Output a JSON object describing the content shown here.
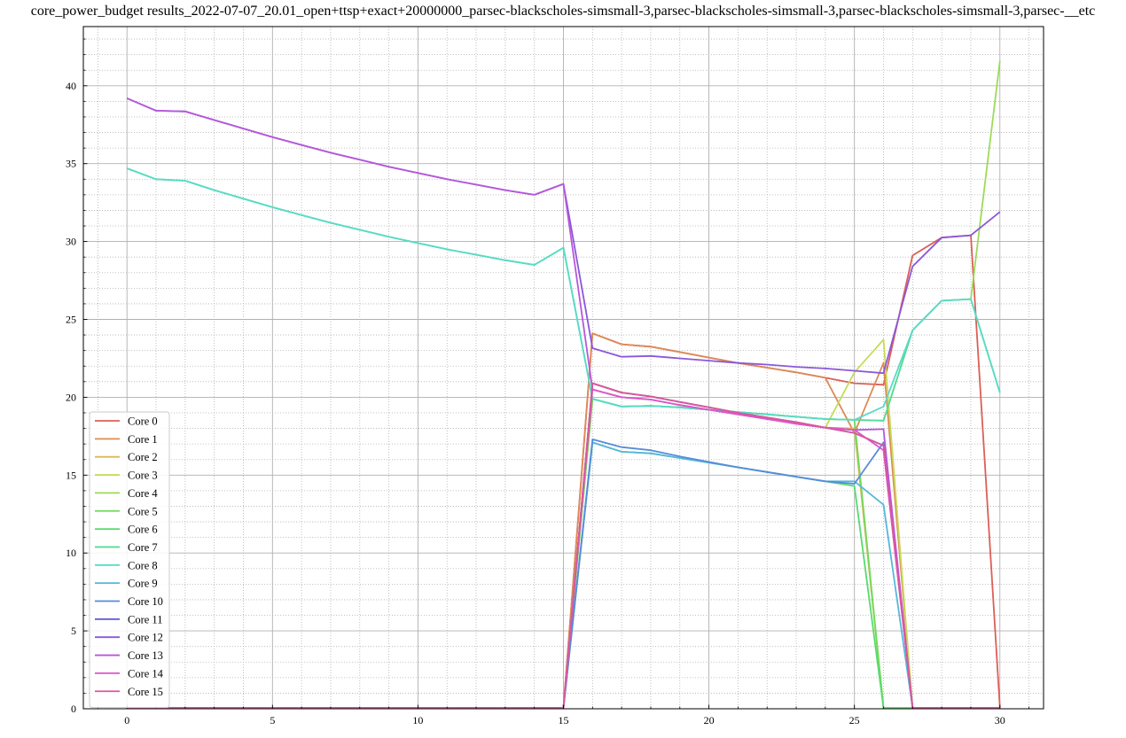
{
  "chart_data": {
    "type": "line",
    "title": "core_power_budget results_2022-07-07_20.01_open+ttsp+exact+20000000_parsec-blackscholes-simsmall-3,parsec-blackscholes-simsmall-3,parsec-blackscholes-simsmall-3,parsec-__etc",
    "xlabel": "",
    "ylabel": "",
    "xlim": [
      -1.5,
      31.5
    ],
    "ylim": [
      0,
      43.8
    ],
    "x_ticks": [
      0,
      5,
      10,
      15,
      20,
      25,
      30
    ],
    "y_ticks": [
      0,
      5,
      10,
      15,
      20,
      25,
      30,
      35,
      40
    ],
    "grid": true,
    "minor_grid": true,
    "legend_position": "lower-left",
    "x": [
      0,
      1,
      2,
      3,
      4,
      5,
      6,
      7,
      8,
      9,
      10,
      11,
      12,
      13,
      14,
      15,
      16,
      17,
      18,
      19,
      20,
      21,
      22,
      23,
      24,
      25,
      26,
      27,
      28,
      29,
      30
    ],
    "series": [
      {
        "name": "Core 0",
        "color": "#db5f57",
        "values": [
          0.05,
          0.05,
          0.05,
          0.05,
          0.05,
          0.05,
          0.05,
          0.05,
          0.05,
          0.05,
          0.05,
          0.05,
          0.05,
          0.05,
          0.05,
          0.05,
          24.1,
          23.4,
          23.25,
          22.9,
          22.55,
          22.2,
          21.9,
          21.6,
          21.25,
          20.9,
          20.8,
          29.1,
          30.25,
          30.4,
          0.05
        ]
      },
      {
        "name": "Core 1",
        "color": "#db8b57",
        "values": [
          0.05,
          0.05,
          0.05,
          0.05,
          0.05,
          0.05,
          0.05,
          0.05,
          0.05,
          0.05,
          0.05,
          0.05,
          0.05,
          0.05,
          0.05,
          0.05,
          24.1,
          23.4,
          23.25,
          22.9,
          22.55,
          22.2,
          21.9,
          21.6,
          21.25,
          17.7,
          22.2,
          0.05,
          0.05,
          0.05,
          0.05
        ]
      },
      {
        "name": "Core 2",
        "color": "#dbb757",
        "values": [
          0.05,
          0.05,
          0.05,
          0.05,
          0.05,
          0.05,
          0.05,
          0.05,
          0.05,
          0.05,
          0.05,
          0.05,
          0.05,
          0.05,
          0.05,
          0.05,
          20.9,
          20.3,
          20.05,
          19.7,
          19.35,
          19.0,
          18.7,
          18.4,
          18.05,
          18.0,
          0.05,
          0.05,
          0.05,
          0.05,
          0.05
        ]
      },
      {
        "name": "Core 3",
        "color": "#c8db57",
        "values": [
          0.05,
          0.05,
          0.05,
          0.05,
          0.05,
          0.05,
          0.05,
          0.05,
          0.05,
          0.05,
          0.05,
          0.05,
          0.05,
          0.05,
          0.05,
          0.05,
          20.9,
          20.3,
          20.05,
          19.7,
          19.35,
          19.0,
          18.7,
          18.4,
          18.05,
          21.6,
          23.7,
          0.05,
          0.05,
          0.05,
          0.05
        ]
      },
      {
        "name": "Core 4",
        "color": "#9cdb57",
        "values": [
          0.05,
          0.05,
          0.05,
          0.05,
          0.05,
          0.05,
          0.05,
          0.05,
          0.05,
          0.05,
          0.05,
          0.05,
          0.05,
          0.05,
          0.05,
          0.05,
          19.9,
          19.4,
          19.45,
          19.35,
          19.2,
          19.05,
          18.9,
          18.75,
          18.6,
          18.55,
          18.5,
          24.3,
          26.2,
          26.3,
          41.6
        ]
      },
      {
        "name": "Core 5",
        "color": "#70db57",
        "values": [
          0.05,
          0.05,
          0.05,
          0.05,
          0.05,
          0.05,
          0.05,
          0.05,
          0.05,
          0.05,
          0.05,
          0.05,
          0.05,
          0.05,
          0.05,
          0.05,
          19.9,
          19.4,
          19.45,
          19.35,
          19.2,
          19.05,
          18.9,
          18.75,
          18.6,
          18.55,
          0.05,
          0.05,
          0.05,
          0.05,
          0.05
        ]
      },
      {
        "name": "Core 6",
        "color": "#57db6f",
        "values": [
          0.05,
          0.05,
          0.05,
          0.05,
          0.05,
          0.05,
          0.05,
          0.05,
          0.05,
          0.05,
          0.05,
          0.05,
          0.05,
          0.05,
          0.05,
          0.05,
          17.1,
          16.5,
          16.4,
          16.1,
          15.8,
          15.5,
          15.2,
          14.9,
          14.6,
          14.3,
          0.05,
          0.05,
          0.05,
          0.05,
          0.05
        ]
      },
      {
        "name": "Core 7",
        "color": "#57db9b",
        "values": [
          34.7,
          34.0,
          33.9,
          33.3,
          32.75,
          32.2,
          31.7,
          31.2,
          30.75,
          30.3,
          29.9,
          29.5,
          29.15,
          28.8,
          28.5,
          29.6,
          19.9,
          19.4,
          19.45,
          19.35,
          19.2,
          19.05,
          18.9,
          18.75,
          18.6,
          18.55,
          18.5,
          24.3,
          26.2,
          26.3,
          20.3
        ]
      },
      {
        "name": "Core 8",
        "color": "#57dbc7",
        "values": [
          34.7,
          34.0,
          33.9,
          33.3,
          32.75,
          32.2,
          31.7,
          31.2,
          30.75,
          30.3,
          29.9,
          29.5,
          29.15,
          28.8,
          28.5,
          29.6,
          19.9,
          19.4,
          19.45,
          19.35,
          19.2,
          19.05,
          18.9,
          18.75,
          18.6,
          18.55,
          19.4,
          24.3,
          26.2,
          26.3,
          20.3
        ]
      },
      {
        "name": "Core 9",
        "color": "#57b7db",
        "values": [
          0.05,
          0.05,
          0.05,
          0.05,
          0.05,
          0.05,
          0.05,
          0.05,
          0.05,
          0.05,
          0.05,
          0.05,
          0.05,
          0.05,
          0.05,
          0.05,
          17.1,
          16.5,
          16.4,
          16.1,
          15.8,
          15.5,
          15.2,
          14.9,
          14.6,
          14.6,
          13.1,
          0.05,
          0.05,
          0.05,
          0.05
        ]
      },
      {
        "name": "Core 10",
        "color": "#578bdb",
        "values": [
          0.05,
          0.05,
          0.05,
          0.05,
          0.05,
          0.05,
          0.05,
          0.05,
          0.05,
          0.05,
          0.05,
          0.05,
          0.05,
          0.05,
          0.05,
          0.05,
          17.3,
          16.8,
          16.6,
          16.2,
          15.85,
          15.5,
          15.2,
          14.9,
          14.6,
          14.45,
          17.1,
          0.05,
          0.05,
          0.05,
          0.05
        ]
      },
      {
        "name": "Core 11",
        "color": "#5f57db",
        "values": [
          0.05,
          0.05,
          0.05,
          0.05,
          0.05,
          0.05,
          0.05,
          0.05,
          0.05,
          0.05,
          0.05,
          0.05,
          0.05,
          0.05,
          0.05,
          0.05,
          20.9,
          20.3,
          20.05,
          19.7,
          19.35,
          19.0,
          18.7,
          18.4,
          18.05,
          17.7,
          16.9,
          0.05,
          0.05,
          0.05,
          0.05
        ]
      },
      {
        "name": "Core 12",
        "color": "#8b57db",
        "values": [
          39.2,
          38.4,
          38.35,
          37.8,
          37.25,
          36.7,
          36.2,
          35.7,
          35.25,
          34.8,
          34.4,
          34.0,
          33.65,
          33.3,
          33.0,
          33.7,
          23.15,
          22.6,
          22.65,
          22.5,
          22.35,
          22.2,
          22.1,
          21.95,
          21.85,
          21.7,
          21.55,
          28.4,
          30.25,
          30.4,
          31.9
        ]
      },
      {
        "name": "Core 13",
        "color": "#b757db",
        "values": [
          39.2,
          38.4,
          38.35,
          37.8,
          37.25,
          36.7,
          36.2,
          35.7,
          35.25,
          34.8,
          34.4,
          34.0,
          33.65,
          33.3,
          33.0,
          33.7,
          20.5,
          20.0,
          19.85,
          19.5,
          19.2,
          18.9,
          18.6,
          18.3,
          18.05,
          17.9,
          17.95,
          0.05,
          0.05,
          0.05,
          0.05
        ]
      },
      {
        "name": "Core 14",
        "color": "#db57c8",
        "values": [
          0.05,
          0.05,
          0.05,
          0.05,
          0.05,
          0.05,
          0.05,
          0.05,
          0.05,
          0.05,
          0.05,
          0.05,
          0.05,
          0.05,
          0.05,
          0.05,
          20.5,
          20.0,
          19.85,
          19.5,
          19.2,
          18.9,
          18.6,
          18.3,
          18.05,
          17.9,
          16.6,
          0.05,
          0.05,
          0.05,
          0.05
        ]
      },
      {
        "name": "Core 15",
        "color": "#db579c",
        "values": [
          0.05,
          0.05,
          0.05,
          0.05,
          0.05,
          0.05,
          0.05,
          0.05,
          0.05,
          0.05,
          0.05,
          0.05,
          0.05,
          0.05,
          0.05,
          0.05,
          20.9,
          20.3,
          20.05,
          19.7,
          19.35,
          19.0,
          18.7,
          18.4,
          18.05,
          17.7,
          16.9,
          0.05,
          0.05,
          0.05,
          0.05
        ]
      }
    ]
  }
}
